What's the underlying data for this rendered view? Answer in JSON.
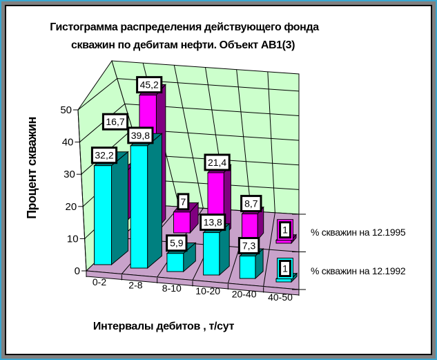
{
  "frame": {
    "outer_color": "#3AA6D0",
    "mid_color": "#808080",
    "line_color": "#000000",
    "bg_color": "#FFFFFF"
  },
  "title": {
    "line1": "Гистограмма распределения действующего фонда",
    "line2": "скважин по дебитам нефти. Объект АВ1(3)"
  },
  "chart_data": {
    "type": "bar",
    "style": "3d-perspective-columns",
    "title": "Гистограмма распределения действующего фонда скважин по дебитам нефти. Объект АВ1(3)",
    "xlabel": "Интервалы дебитов , т/сут",
    "ylabel": "Процент скважин",
    "categories": [
      "0-2",
      "2-8",
      "8-10",
      "10-20",
      "20-40",
      "40-50"
    ],
    "series": [
      {
        "name": "% скважин на 12.1995",
        "depth": "back",
        "color": "#FF00FF",
        "side_color": "#800080",
        "values": [
          16.7,
          45.2,
          7,
          21.4,
          8.7,
          1
        ]
      },
      {
        "name": "% скважин на 12.1992",
        "depth": "front",
        "color": "#00FFFF",
        "side_color": "#008080",
        "values": [
          32.2,
          39.8,
          5.9,
          13.8,
          7.3,
          1
        ]
      }
    ],
    "yticks": [
      0,
      10,
      20,
      30,
      40,
      50
    ],
    "ylim": [
      0,
      50
    ],
    "grid": true,
    "legend_position": "right",
    "value_labels": true,
    "decimal_separator": ",",
    "wall_color": "#CCFFCC",
    "floor_color": "#C8A2CA",
    "label_offsets": [
      {
        "series": 0,
        "category": 0,
        "dx": 0,
        "dy": -64
      }
    ]
  }
}
